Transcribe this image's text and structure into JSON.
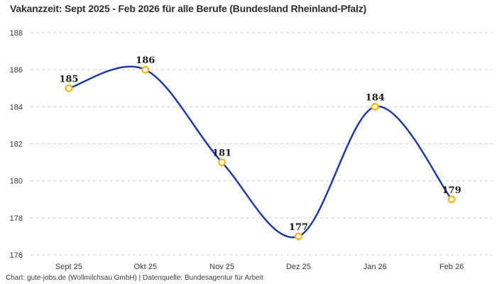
{
  "title": "Vakanzzeit: Sept 2025 - Feb 2026 für alle Berufe (Bundesland Rheinland-Pfalz)",
  "footer": "Chart: gute-jobs.de (Wollmilchsau GmbH) | Datenquelle: Bundesagentur für Arbeit",
  "chart_data": {
    "type": "line",
    "title": "Vakanzzeit: Sept 2025 - Feb 2026 für alle Berufe (Bundesland Rheinland-Pfalz)",
    "categories": [
      "Sept 25",
      "Okt 25",
      "Nov 25",
      "Dez 25",
      "Jan 26",
      "Feb 26"
    ],
    "series": [
      {
        "name": "Vakanzzeit",
        "values": [
          185,
          186,
          181,
          177,
          184,
          179
        ]
      }
    ],
    "point_labels_visible": true,
    "xlabel": "",
    "ylabel": "",
    "ylim": [
      176,
      188
    ],
    "yticks": [
      176,
      178,
      180,
      182,
      184,
      186,
      188
    ],
    "grid": "horizontal-dashed",
    "legend": "none",
    "curve": "smooth",
    "colors": {
      "line": "#1f3aa5",
      "marker_stroke": "#fdb515",
      "marker_fill": "#ffffff",
      "grid": "#cccccc",
      "tick_text": "#3a3a3a",
      "point_label_text": "#1a1a1a",
      "title_text": "#2e2e2e",
      "footer_text": "#3c3c3c"
    }
  }
}
